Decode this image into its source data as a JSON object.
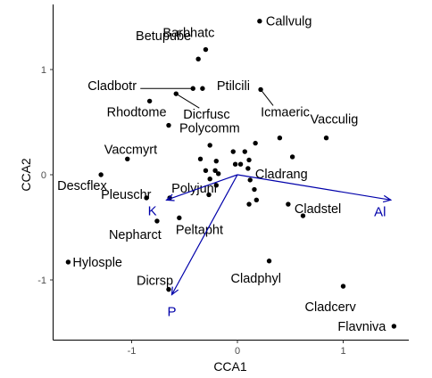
{
  "chart_data": {
    "type": "scatter",
    "title": "",
    "xlabel": "CCA1",
    "ylabel": "CCA2",
    "xlim": [
      -1.75,
      1.62
    ],
    "ylim": [
      -1.58,
      1.6
    ],
    "grid": false,
    "xticks": [
      {
        "value": -1,
        "label": "-1"
      },
      {
        "value": 0,
        "label": "0"
      },
      {
        "value": 1,
        "label": "1"
      }
    ],
    "yticks": [
      {
        "value": -1,
        "label": "-1"
      },
      {
        "value": 0,
        "label": "0"
      },
      {
        "value": 1,
        "label": "1"
      }
    ],
    "arrow_color": "#0000aa",
    "species": [
      {
        "label": "Callvulg",
        "x": 0.21,
        "y": 1.46
      },
      {
        "label": "Barbhatc",
        "x": -0.3,
        "y": 1.19
      },
      {
        "label": "Betupube",
        "x": -0.37,
        "y": 1.1
      },
      {
        "label": "Ptilcili",
        "x": -0.33,
        "y": 0.82
      },
      {
        "label": "Cladbotr",
        "x": -0.42,
        "y": 0.82
      },
      {
        "label": "Icmaeric",
        "x": 0.22,
        "y": 0.81
      },
      {
        "label": "Dicrfusc",
        "x": -0.58,
        "y": 0.77
      },
      {
        "label": "Rhodtome",
        "x": -0.83,
        "y": 0.7
      },
      {
        "label": "Polycomm",
        "x": -0.65,
        "y": 0.47
      },
      {
        "label": "Vacculig",
        "x": 0.84,
        "y": 0.35
      },
      {
        "label": "Vaccmyrt",
        "x": -1.04,
        "y": 0.15
      },
      {
        "label": "Cladrang",
        "x": 0.1,
        "y": 0.06
      },
      {
        "label": "Descflex",
        "x": -1.29,
        "y": 0.0
      },
      {
        "label": "Pleuschr",
        "x": -0.86,
        "y": -0.22
      },
      {
        "label": "Polyjuni",
        "x": -0.64,
        "y": -0.22
      },
      {
        "label": "Cladstel",
        "x": 0.48,
        "y": -0.28
      },
      {
        "label": "Nepharct",
        "x": -0.76,
        "y": -0.44
      },
      {
        "label": "Peltapht",
        "x": -0.55,
        "y": -0.41
      },
      {
        "label": "Hylosple",
        "x": -1.6,
        "y": -0.83
      },
      {
        "label": "Cladphyl",
        "x": 0.3,
        "y": -0.82
      },
      {
        "label": "Dicrsp",
        "x": -0.65,
        "y": -1.09
      },
      {
        "label": "Cladcerv",
        "x": 1.0,
        "y": -1.06
      },
      {
        "label": "Flavniva",
        "x": 1.48,
        "y": -1.44
      }
    ],
    "unlabeled_points": [
      {
        "x": 0.17,
        "y": 0.3
      },
      {
        "x": 0.4,
        "y": 0.35
      },
      {
        "x": 0.52,
        "y": 0.17
      },
      {
        "x": -0.26,
        "y": 0.28
      },
      {
        "x": -0.04,
        "y": 0.22
      },
      {
        "x": 0.07,
        "y": 0.22
      },
      {
        "x": -0.35,
        "y": 0.15
      },
      {
        "x": -0.2,
        "y": 0.13
      },
      {
        "x": 0.11,
        "y": 0.14
      },
      {
        "x": -0.02,
        "y": 0.1
      },
      {
        "x": 0.03,
        "y": 0.1
      },
      {
        "x": -0.3,
        "y": 0.04
      },
      {
        "x": -0.21,
        "y": 0.04
      },
      {
        "x": -0.18,
        "y": 0.01
      },
      {
        "x": -0.26,
        "y": -0.04
      },
      {
        "x": -0.2,
        "y": -0.1
      },
      {
        "x": 0.12,
        "y": -0.05
      },
      {
        "x": 0.16,
        "y": -0.14
      },
      {
        "x": -0.27,
        "y": -0.19
      },
      {
        "x": 0.18,
        "y": -0.24
      },
      {
        "x": 0.11,
        "y": -0.28
      },
      {
        "x": 0.62,
        "y": -0.39
      }
    ],
    "vectors": [
      {
        "label": "Al",
        "x": 1.45,
        "y": -0.24
      },
      {
        "label": "K",
        "x": -0.67,
        "y": -0.24
      },
      {
        "label": "P",
        "x": -0.62,
        "y": -1.14
      }
    ]
  }
}
